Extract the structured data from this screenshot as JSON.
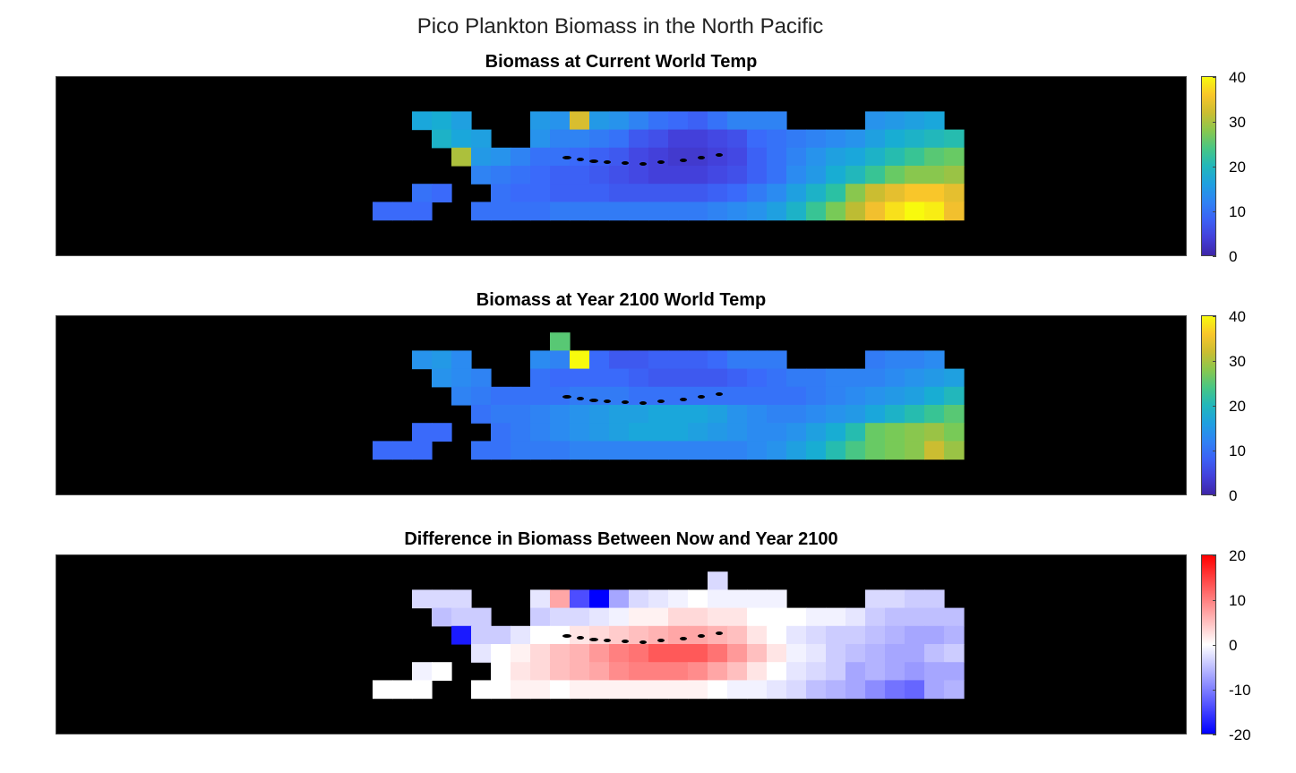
{
  "figure": {
    "suptitle": "Pico Plankton Biomass in the North Pacific"
  },
  "colors": {
    "land": "#000000",
    "parula": [
      "#3e26a8",
      "#4443e0",
      "#3a69fa",
      "#2a8ef0",
      "#17acd6",
      "#2cc2a0",
      "#72cb5a",
      "#bfbc32",
      "#f9c02d",
      "#f8fa0d"
    ],
    "diverging": [
      "#0000ff",
      "#ffffff",
      "#ff0000"
    ]
  },
  "chart_data": [
    {
      "type": "heatmap",
      "title": "Biomass at Current World Temp",
      "colormap": "parula",
      "clim": [
        0,
        40
      ],
      "colorbar_ticks": [
        "0",
        "10",
        "20",
        "30",
        "40"
      ],
      "rows": 8,
      "cols": 41,
      "values": [
        [
          null,
          null,
          null,
          null,
          null,
          null,
          null,
          null,
          null,
          null,
          null,
          null,
          null,
          null,
          null,
          null,
          null,
          null,
          null,
          null,
          null,
          null,
          null,
          null,
          null,
          null,
          null,
          null,
          null,
          null,
          null,
          null,
          null,
          null,
          null,
          null,
          null,
          null,
          null,
          null,
          null
        ],
        [
          null,
          null,
          null,
          null,
          null,
          null,
          null,
          null,
          null,
          null,
          null,
          null,
          null,
          null,
          null,
          null,
          null,
          null,
          null,
          null,
          null,
          null,
          null,
          null,
          null,
          null,
          null,
          null,
          null,
          null,
          null,
          null,
          null,
          null,
          null,
          null,
          null,
          null,
          null,
          null,
          null
        ],
        [
          null,
          null,
          null,
          null,
          null,
          null,
          null,
          null,
          null,
          17,
          18,
          16,
          null,
          null,
          null,
          15,
          14,
          33,
          15,
          14,
          12,
          10,
          9,
          8,
          10,
          12,
          12,
          12,
          null,
          null,
          null,
          null,
          14,
          15,
          16,
          17,
          null,
          null,
          null,
          null,
          null
        ],
        [
          null,
          null,
          null,
          null,
          null,
          null,
          null,
          null,
          null,
          null,
          19,
          17,
          16,
          null,
          null,
          14,
          12,
          12,
          11,
          10,
          7,
          6,
          4,
          4,
          5,
          6,
          9,
          10,
          11,
          12,
          13,
          14,
          16,
          18,
          19,
          20,
          21,
          null,
          null,
          null,
          null
        ],
        [
          null,
          null,
          null,
          null,
          null,
          null,
          null,
          null,
          null,
          null,
          null,
          30,
          15,
          14,
          12,
          10,
          10,
          9,
          8,
          7,
          5,
          4,
          3,
          3,
          4,
          5,
          8,
          10,
          12,
          14,
          16,
          17,
          19,
          21,
          23,
          25,
          26,
          null,
          null,
          null,
          null
        ],
        [
          null,
          null,
          null,
          null,
          null,
          null,
          null,
          null,
          null,
          null,
          null,
          null,
          12,
          11,
          10,
          9,
          8,
          8,
          7,
          6,
          5,
          4,
          4,
          4,
          5,
          6,
          8,
          10,
          13,
          15,
          18,
          20,
          23,
          26,
          28,
          28,
          29,
          null,
          null,
          null,
          null
        ],
        [
          null,
          null,
          null,
          null,
          null,
          null,
          null,
          null,
          null,
          10,
          9,
          null,
          null,
          10,
          9,
          9,
          8,
          8,
          8,
          7,
          7,
          7,
          7,
          7,
          8,
          9,
          11,
          13,
          16,
          19,
          22,
          28,
          32,
          34,
          36,
          36,
          34,
          null,
          null,
          null,
          null
        ],
        [
          null,
          null,
          null,
          null,
          null,
          null,
          null,
          9,
          9,
          9,
          null,
          null,
          10,
          10,
          10,
          10,
          11,
          11,
          11,
          11,
          11,
          11,
          11,
          11,
          12,
          13,
          14,
          16,
          19,
          23,
          27,
          31,
          35,
          38,
          40,
          39,
          35,
          null,
          null,
          null,
          null
        ]
      ]
    },
    {
      "type": "heatmap",
      "title": "Biomass at Year 2100 World Temp",
      "colormap": "parula",
      "clim": [
        0,
        40
      ],
      "colorbar_ticks": [
        "0",
        "10",
        "20",
        "30",
        "40"
      ],
      "rows": 8,
      "cols": 41,
      "values": [
        [
          null,
          null,
          null,
          null,
          null,
          null,
          null,
          null,
          null,
          null,
          null,
          null,
          null,
          null,
          null,
          null,
          null,
          null,
          null,
          null,
          null,
          null,
          null,
          null,
          null,
          null,
          null,
          null,
          null,
          null,
          null,
          null,
          null,
          null,
          null,
          null,
          null,
          null,
          null,
          null,
          null
        ],
        [
          null,
          null,
          null,
          null,
          null,
          null,
          null,
          null,
          null,
          null,
          null,
          null,
          null,
          null,
          null,
          null,
          25,
          null,
          null,
          null,
          null,
          null,
          null,
          null,
          null,
          null,
          null,
          null,
          null,
          null,
          null,
          null,
          null,
          null,
          null,
          null,
          null,
          null,
          null,
          null,
          null
        ],
        [
          null,
          null,
          null,
          null,
          null,
          null,
          null,
          null,
          null,
          14,
          15,
          13,
          null,
          null,
          null,
          13,
          12,
          40,
          9,
          7,
          7,
          8,
          8,
          8,
          9,
          11,
          11,
          11,
          null,
          null,
          null,
          null,
          11,
          12,
          12,
          13,
          null,
          null,
          null,
          null,
          null
        ],
        [
          null,
          null,
          null,
          null,
          null,
          null,
          null,
          null,
          null,
          null,
          14,
          13,
          12,
          null,
          null,
          10,
          9,
          9,
          9,
          9,
          8,
          7,
          7,
          7,
          7,
          8,
          9,
          10,
          11,
          11,
          12,
          12,
          12,
          13,
          14,
          15,
          16,
          null,
          null,
          null,
          null
        ],
        [
          null,
          null,
          null,
          null,
          null,
          null,
          null,
          null,
          null,
          null,
          null,
          12,
          11,
          10,
          10,
          10,
          10,
          11,
          11,
          11,
          10,
          10,
          10,
          10,
          10,
          10,
          10,
          10,
          10,
          11,
          12,
          13,
          14,
          15,
          16,
          18,
          20,
          null,
          null,
          null,
          null
        ],
        [
          null,
          null,
          null,
          null,
          null,
          null,
          null,
          null,
          null,
          null,
          null,
          null,
          10,
          11,
          11,
          12,
          13,
          14,
          15,
          16,
          16,
          17,
          17,
          17,
          16,
          14,
          13,
          12,
          12,
          13,
          14,
          15,
          17,
          19,
          21,
          23,
          25,
          null,
          null,
          null,
          null
        ],
        [
          null,
          null,
          null,
          null,
          null,
          null,
          null,
          null,
          null,
          9,
          9,
          null,
          null,
          10,
          11,
          12,
          13,
          14,
          15,
          16,
          17,
          17,
          17,
          16,
          15,
          14,
          13,
          13,
          14,
          16,
          18,
          21,
          26,
          27,
          28,
          29,
          27,
          null,
          null,
          null,
          null
        ],
        [
          null,
          null,
          null,
          null,
          null,
          null,
          null,
          9,
          9,
          9,
          null,
          null,
          10,
          10,
          11,
          11,
          11,
          12,
          12,
          12,
          12,
          12,
          12,
          12,
          12,
          12,
          13,
          14,
          16,
          18,
          21,
          24,
          26,
          27,
          28,
          32,
          29,
          null,
          null,
          null,
          null
        ]
      ]
    },
    {
      "type": "heatmap",
      "title": "Difference in Biomass Between Now and Year 2100",
      "colormap": "diverging",
      "clim": [
        -20,
        20
      ],
      "colorbar_ticks": [
        "-20",
        "-10",
        "0",
        "10",
        "20"
      ],
      "rows": 8,
      "cols": 41,
      "values": [
        [
          null,
          null,
          null,
          null,
          null,
          null,
          null,
          null,
          null,
          null,
          null,
          null,
          null,
          null,
          null,
          null,
          null,
          null,
          null,
          null,
          null,
          null,
          null,
          null,
          null,
          null,
          null,
          null,
          null,
          null,
          null,
          null,
          null,
          null,
          null,
          null,
          null,
          null,
          null,
          null,
          null
        ],
        [
          null,
          null,
          null,
          null,
          null,
          null,
          null,
          null,
          null,
          null,
          null,
          null,
          null,
          null,
          null,
          null,
          null,
          null,
          null,
          null,
          null,
          null,
          null,
          null,
          -3,
          null,
          null,
          null,
          null,
          null,
          null,
          null,
          null,
          null,
          null,
          null,
          null,
          null,
          null,
          null,
          null
        ],
        [
          null,
          null,
          null,
          null,
          null,
          null,
          null,
          null,
          null,
          -3,
          -3,
          -3,
          null,
          null,
          null,
          -2,
          7,
          -14,
          -20,
          -7,
          -3,
          -2,
          -1,
          0,
          -1,
          -1,
          -1,
          -1,
          null,
          null,
          null,
          null,
          -3,
          -3,
          -4,
          -4,
          null,
          null,
          null,
          null,
          null
        ],
        [
          null,
          null,
          null,
          null,
          null,
          null,
          null,
          null,
          null,
          null,
          -5,
          -4,
          -4,
          null,
          null,
          -4,
          -3,
          -3,
          -2,
          -1,
          1,
          1,
          3,
          3,
          2,
          2,
          0,
          0,
          0,
          -1,
          -1,
          -2,
          -4,
          -5,
          -5,
          -5,
          -5,
          null,
          null,
          null,
          null
        ],
        [
          null,
          null,
          null,
          null,
          null,
          null,
          null,
          null,
          null,
          null,
          null,
          -18,
          -4,
          -4,
          -2,
          0,
          0,
          2,
          3,
          4,
          5,
          6,
          7,
          7,
          6,
          5,
          2,
          0,
          -2,
          -3,
          -4,
          -4,
          -5,
          -6,
          -7,
          -7,
          -6,
          null,
          null,
          null,
          null
        ],
        [
          null,
          null,
          null,
          null,
          null,
          null,
          null,
          null,
          null,
          null,
          null,
          null,
          -2,
          0,
          1,
          3,
          5,
          6,
          8,
          10,
          11,
          13,
          13,
          13,
          11,
          8,
          5,
          2,
          -1,
          -2,
          -4,
          -5,
          -6,
          -7,
          -7,
          -5,
          -4,
          null,
          null,
          null,
          null
        ],
        [
          null,
          null,
          null,
          null,
          null,
          null,
          null,
          null,
          null,
          -1,
          0,
          null,
          null,
          0,
          2,
          3,
          5,
          6,
          7,
          9,
          10,
          10,
          10,
          9,
          7,
          5,
          2,
          0,
          -2,
          -3,
          -4,
          -7,
          -6,
          -7,
          -8,
          -7,
          -7,
          null,
          null,
          null,
          null
        ],
        [
          null,
          null,
          null,
          null,
          null,
          null,
          null,
          0,
          0,
          0,
          null,
          null,
          0,
          0,
          1,
          1,
          0,
          1,
          1,
          1,
          1,
          1,
          1,
          1,
          0,
          -1,
          -1,
          -2,
          -3,
          -5,
          -6,
          -7,
          -9,
          -11,
          -12,
          -7,
          -6,
          null,
          null,
          null,
          null
        ]
      ]
    }
  ]
}
